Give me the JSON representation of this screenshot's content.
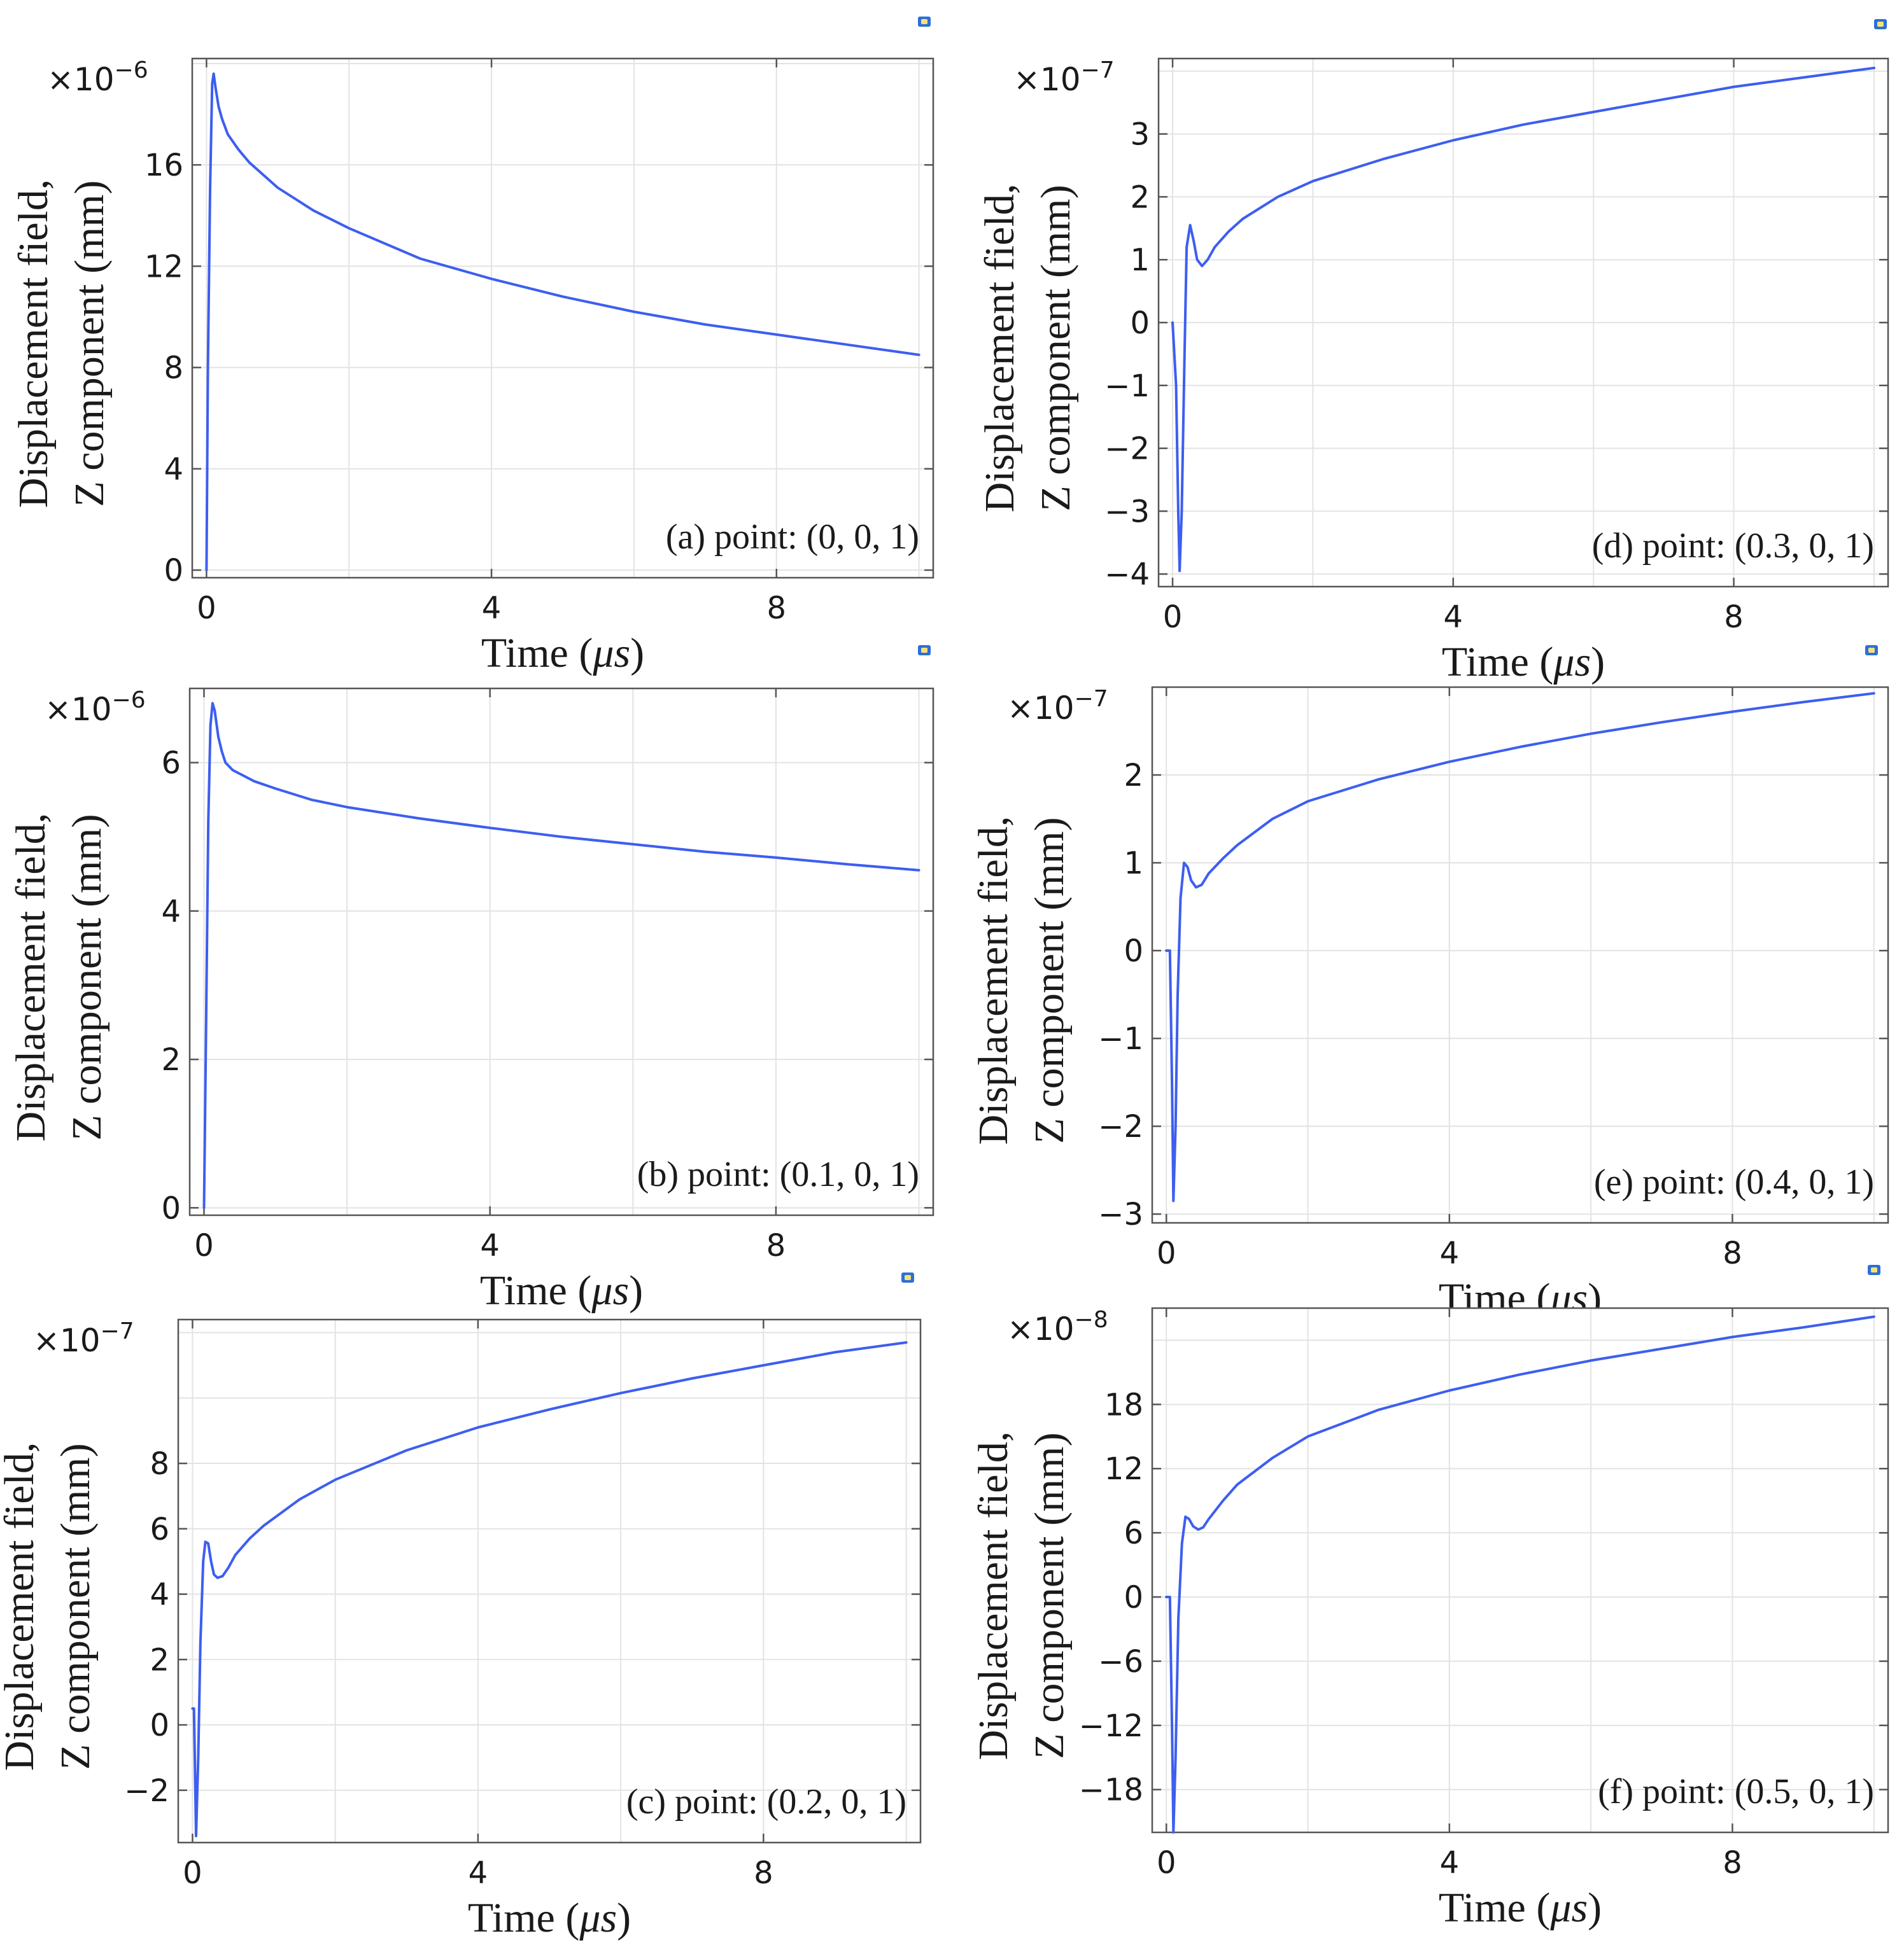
{
  "colors": {
    "line": "#3d5ef0",
    "grid": "#e3e3e3",
    "frame": "#555555",
    "marker": "#2d6fd6",
    "marker_fill": "#f3e27a"
  },
  "chart_data": [
    {
      "id": "a",
      "type": "line",
      "annotation": "(a) point: (0, 0, 1)",
      "xlabel_prefix": "Time (",
      "xlabel_unit": "μs",
      "xlabel_suffix": ")",
      "ylabel_line1": "Displacement field,",
      "ylabel_line2": "Z component (mm)",
      "multiplier_base": "×10",
      "multiplier_exp": "−6",
      "xlim": [
        -0.2,
        10.2
      ],
      "ylim": [
        -0.3,
        20.2
      ],
      "xticks": [
        0,
        4,
        8
      ],
      "xtick_labels": [
        "0",
        "4",
        "8"
      ],
      "yticks": [
        0,
        4,
        8,
        12,
        16
      ],
      "ytick_labels": [
        "0",
        "4",
        "8",
        "12",
        "16"
      ],
      "series": [
        {
          "name": "Displacement field, Z component",
          "x": [
            0,
            0.02,
            0.05,
            0.08,
            0.1,
            0.13,
            0.17,
            0.22,
            0.3,
            0.45,
            0.6,
            0.8,
            1.0,
            1.5,
            2,
            3,
            4,
            5,
            6,
            7,
            8,
            9,
            10
          ],
          "y": [
            0,
            8,
            15,
            19.2,
            19.6,
            19.0,
            18.3,
            17.8,
            17.2,
            16.6,
            16.1,
            15.6,
            15.1,
            14.2,
            13.5,
            12.3,
            11.5,
            10.8,
            10.2,
            9.7,
            9.3,
            8.9,
            8.5
          ]
        }
      ]
    },
    {
      "id": "d",
      "type": "line",
      "annotation": "(d) point: (0.3, 0, 1)",
      "xlabel_prefix": "Time (",
      "xlabel_unit": "μs",
      "xlabel_suffix": ")",
      "ylabel_line1": "Displacement field,",
      "ylabel_line2": "Z component (mm)",
      "multiplier_base": "×10",
      "multiplier_exp": "−7",
      "xlim": [
        -0.2,
        10.2
      ],
      "ylim": [
        -4.2,
        4.2
      ],
      "xticks": [
        0,
        4,
        8
      ],
      "xtick_labels": [
        "0",
        "4",
        "8"
      ],
      "yticks": [
        -4,
        -3,
        -2,
        -1,
        0,
        1,
        2,
        3
      ],
      "ytick_labels": [
        "−4",
        "−3",
        "−2",
        "−1",
        "0",
        "1",
        "2",
        "3"
      ],
      "series": [
        {
          "name": "Displacement field, Z component",
          "x": [
            0,
            0.05,
            0.08,
            0.1,
            0.13,
            0.17,
            0.2,
            0.25,
            0.3,
            0.35,
            0.42,
            0.5,
            0.6,
            0.8,
            1,
            1.5,
            2,
            3,
            4,
            5,
            6,
            7,
            8,
            9,
            10
          ],
          "y": [
            0,
            -1,
            -3,
            -3.95,
            -3,
            -0.5,
            1.2,
            1.55,
            1.3,
            1.0,
            0.9,
            1.0,
            1.2,
            1.45,
            1.65,
            2.0,
            2.25,
            2.6,
            2.9,
            3.15,
            3.35,
            3.55,
            3.75,
            3.9,
            4.05
          ]
        }
      ]
    },
    {
      "id": "b",
      "type": "line",
      "annotation": "(b) point: (0.1, 0, 1)",
      "xlabel_prefix": "Time (",
      "xlabel_unit": "μs",
      "xlabel_suffix": ")",
      "ylabel_line1": "Displacement field,",
      "ylabel_line2": "Z component (mm)",
      "multiplier_base": "×10",
      "multiplier_exp": "−6",
      "xlim": [
        -0.2,
        10.2
      ],
      "ylim": [
        -0.1,
        7.0
      ],
      "xticks": [
        0,
        4,
        8
      ],
      "xtick_labels": [
        "0",
        "4",
        "8"
      ],
      "yticks": [
        0,
        2,
        4,
        6
      ],
      "ytick_labels": [
        "0",
        "2",
        "4",
        "6"
      ],
      "series": [
        {
          "name": "Displacement field, Z component",
          "x": [
            0,
            0.03,
            0.06,
            0.09,
            0.12,
            0.15,
            0.2,
            0.25,
            0.3,
            0.4,
            0.5,
            0.7,
            1,
            1.5,
            2,
            3,
            4,
            5,
            6,
            7,
            8,
            9,
            10
          ],
          "y": [
            0,
            2.5,
            5.2,
            6.5,
            6.8,
            6.7,
            6.35,
            6.15,
            6.0,
            5.9,
            5.85,
            5.75,
            5.65,
            5.5,
            5.4,
            5.25,
            5.12,
            5.0,
            4.9,
            4.8,
            4.72,
            4.63,
            4.55
          ]
        }
      ]
    },
    {
      "id": "e",
      "type": "line",
      "annotation": "(e) point: (0.4, 0, 1)",
      "xlabel_prefix": "Time (",
      "xlabel_unit": "μs",
      "xlabel_suffix": ")",
      "ylabel_line1": "Displacement field,",
      "ylabel_line2": "Z component (mm)",
      "multiplier_base": "×10",
      "multiplier_exp": "−7",
      "xlim": [
        -0.2,
        10.2
      ],
      "ylim": [
        -3.1,
        3.0
      ],
      "xticks": [
        0,
        4,
        8
      ],
      "xtick_labels": [
        "0",
        "4",
        "8"
      ],
      "yticks": [
        -3,
        -2,
        -1,
        0,
        1,
        2
      ],
      "ytick_labels": [
        "−3",
        "−2",
        "−1",
        "0",
        "1",
        "2"
      ],
      "series": [
        {
          "name": "Displacement field, Z component",
          "x": [
            0,
            0.05,
            0.08,
            0.1,
            0.13,
            0.16,
            0.2,
            0.25,
            0.3,
            0.35,
            0.42,
            0.5,
            0.6,
            0.8,
            1,
            1.5,
            2,
            3,
            4,
            5,
            6,
            7,
            8,
            9,
            10
          ],
          "y": [
            0,
            0,
            -1.5,
            -2.85,
            -2.0,
            -0.5,
            0.6,
            1.0,
            0.95,
            0.8,
            0.72,
            0.75,
            0.88,
            1.05,
            1.2,
            1.5,
            1.7,
            1.95,
            2.15,
            2.32,
            2.47,
            2.6,
            2.72,
            2.83,
            2.93
          ]
        }
      ]
    },
    {
      "id": "c",
      "type": "line",
      "annotation": "(c) point: (0.2, 0, 1)",
      "xlabel_prefix": "Time (",
      "xlabel_unit": "μs",
      "xlabel_suffix": ")",
      "ylabel_line1": "Displacement field,",
      "ylabel_line2": "Z component (mm)",
      "multiplier_base": "×10",
      "multiplier_exp": "−7",
      "xlim": [
        -0.2,
        10.2
      ],
      "ylim": [
        -3.6,
        12.4
      ],
      "xticks": [
        0,
        4,
        8
      ],
      "xtick_labels": [
        "0",
        "4",
        "8"
      ],
      "yticks": [
        -2,
        0,
        2,
        4,
        6,
        8
      ],
      "ytick_labels": [
        "−2",
        "0",
        "2",
        "4",
        "6",
        "8"
      ],
      "series": [
        {
          "name": "Displacement field, Z component",
          "x": [
            0,
            0.02,
            0.05,
            0.08,
            0.11,
            0.15,
            0.18,
            0.22,
            0.26,
            0.3,
            0.35,
            0.42,
            0.5,
            0.6,
            0.8,
            1,
            1.5,
            2,
            3,
            4,
            5,
            6,
            7,
            8,
            9,
            10
          ],
          "y": [
            0.5,
            0.5,
            -3.4,
            -1.0,
            2.5,
            5.0,
            5.6,
            5.55,
            5.0,
            4.6,
            4.5,
            4.55,
            4.8,
            5.2,
            5.7,
            6.1,
            6.9,
            7.5,
            8.4,
            9.1,
            9.65,
            10.15,
            10.6,
            11.0,
            11.4,
            11.7
          ]
        }
      ]
    },
    {
      "id": "f",
      "type": "line",
      "annotation": "(f) point: (0.5, 0, 1)",
      "xlabel_prefix": "Time (",
      "xlabel_unit": "μs",
      "xlabel_suffix": ")",
      "ylabel_line1": "Displacement field,",
      "ylabel_line2": "Z component (mm)",
      "multiplier_base": "×10",
      "multiplier_exp": "−8",
      "xlim": [
        -0.2,
        10.2
      ],
      "ylim": [
        -22,
        27
      ],
      "xticks": [
        0,
        4,
        8
      ],
      "xtick_labels": [
        "0",
        "4",
        "8"
      ],
      "yticks": [
        -18,
        -12,
        -6,
        0,
        6,
        12,
        18
      ],
      "ytick_labels": [
        "−18",
        "−12",
        "−6",
        "0",
        "6",
        "12",
        "18"
      ],
      "series": [
        {
          "name": "Displacement field, Z component",
          "x": [
            0,
            0.05,
            0.08,
            0.1,
            0.13,
            0.17,
            0.22,
            0.27,
            0.32,
            0.38,
            0.45,
            0.52,
            0.6,
            0.8,
            1,
            1.5,
            2,
            3,
            4,
            5,
            6,
            7,
            8,
            9,
            10
          ],
          "y": [
            0,
            0,
            -12,
            -22,
            -15,
            -2,
            5,
            7.5,
            7.3,
            6.6,
            6.3,
            6.5,
            7.3,
            9,
            10.5,
            13,
            15,
            17.5,
            19.3,
            20.8,
            22.1,
            23.2,
            24.3,
            25.2,
            26.2
          ]
        }
      ]
    }
  ]
}
